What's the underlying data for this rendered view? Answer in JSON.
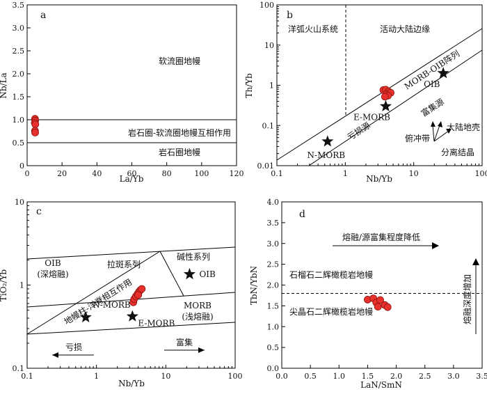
{
  "chart_data": [
    {
      "panel": "a",
      "type": "scatter",
      "xlabel": "La/Yb",
      "ylabel": "Nb/La",
      "xlim": [
        0,
        120
      ],
      "ylim": [
        0,
        3.5
      ],
      "x_ticks": [
        "0",
        "20",
        "40",
        "60",
        "80",
        "100",
        "120"
      ],
      "y_ticks": [
        "0",
        "0.5",
        "1.0",
        "1.5",
        "2.0",
        "2.5",
        "3.0",
        "3.5"
      ],
      "reference_lines": [
        {
          "y": 1.0
        },
        {
          "y": 0.5
        }
      ],
      "annotations": [
        "软流圈地幔",
        "岩石圈-软流圈地幔互相作用",
        "岩石圈地幔"
      ],
      "points": [
        [
          4.5,
          1.02
        ],
        [
          4.6,
          0.98
        ],
        [
          4.4,
          0.93
        ],
        [
          4.7,
          0.9
        ],
        [
          4.5,
          0.76
        ],
        [
          4.6,
          0.72
        ]
      ]
    },
    {
      "panel": "b",
      "type": "scatter",
      "xlabel": "Nb/Yb",
      "ylabel": "Th/Yb",
      "xscale": "log",
      "yscale": "log",
      "xlim": [
        0.1,
        100
      ],
      "ylim": [
        0.01,
        100
      ],
      "x_ticks": [
        "0.1",
        "1",
        "10",
        "100"
      ],
      "y_ticks": [
        "0.01",
        "0.1",
        "1",
        "10",
        "100"
      ],
      "vertical_divider": 1,
      "annotations": [
        "洋弧火山系统",
        "活动大陆边缘",
        "MORB-OIB阵列",
        "富集源",
        "亏损源",
        "俯冲带",
        "大陆地壳",
        "分离结晶"
      ],
      "reference_points": [
        {
          "label": "N-MORB",
          "x": 0.55,
          "y": 0.04
        },
        {
          "label": "E-MORB",
          "x": 3.9,
          "y": 0.3
        },
        {
          "label": "OIB",
          "x": 27,
          "y": 2.0
        }
      ],
      "points": [
        [
          3.6,
          0.76
        ],
        [
          3.9,
          0.78
        ],
        [
          4.3,
          0.7
        ],
        [
          4.0,
          0.6
        ],
        [
          4.6,
          0.65
        ],
        [
          4.2,
          0.55
        ],
        [
          3.8,
          0.52
        ]
      ]
    },
    {
      "panel": "c",
      "type": "scatter",
      "xlabel": "Nb/Yb",
      "ylabel": "TiO₂/Yb",
      "xscale": "log",
      "yscale": "log",
      "xlim": [
        0.1,
        100
      ],
      "ylim": [
        0.1,
        10
      ],
      "x_ticks": [
        "0.1",
        "1",
        "10",
        "100"
      ],
      "y_ticks": [
        "0.1",
        "1",
        "10"
      ],
      "annotations": [
        "OIB",
        "(深熔融)",
        "拉斑系列",
        "碱性系列",
        "地幔柱-洋脊相互作用",
        "MORB",
        "(浅熔融)",
        "亏损",
        "富集"
      ],
      "reference_points": [
        {
          "label": "N-MORB",
          "x": 0.7,
          "y": 0.41
        },
        {
          "label": "E-MORB",
          "x": 3.3,
          "y": 0.42
        },
        {
          "label": "OIB",
          "x": 22,
          "y": 1.35
        }
      ],
      "points": [
        [
          3.4,
          0.62
        ],
        [
          3.5,
          0.68
        ],
        [
          3.7,
          0.73
        ],
        [
          3.9,
          0.78
        ],
        [
          4.1,
          0.83
        ],
        [
          4.3,
          0.87
        ],
        [
          4.5,
          0.9
        ],
        [
          4.0,
          0.76
        ]
      ]
    },
    {
      "panel": "d",
      "type": "scatter",
      "xlabel": "LaN/SmN",
      "ylabel": "TbN/YbN",
      "xlim": [
        0,
        3.5
      ],
      "ylim": [
        0,
        4.0
      ],
      "x_ticks": [
        "0.0",
        "0.5",
        "1.0",
        "1.5",
        "2.0",
        "2.5",
        "3.0",
        "3.5"
      ],
      "y_ticks": [
        "0.0",
        "0.5",
        "1.0",
        "1.5",
        "2.0",
        "2.5",
        "3.0",
        "3.5",
        "4.0"
      ],
      "reference_lines": [
        {
          "y": 1.8,
          "style": "dashed"
        }
      ],
      "annotations": [
        "熔融/源富集程度降低",
        "石榴石二辉橄榄岩地幔",
        "尖晶石二辉橄榄岩地幔",
        "熔融深度增加"
      ],
      "points": [
        [
          1.5,
          1.65
        ],
        [
          1.6,
          1.68
        ],
        [
          1.65,
          1.58
        ],
        [
          1.72,
          1.64
        ],
        [
          1.68,
          1.48
        ],
        [
          1.8,
          1.52
        ],
        [
          1.85,
          1.47
        ]
      ]
    }
  ]
}
